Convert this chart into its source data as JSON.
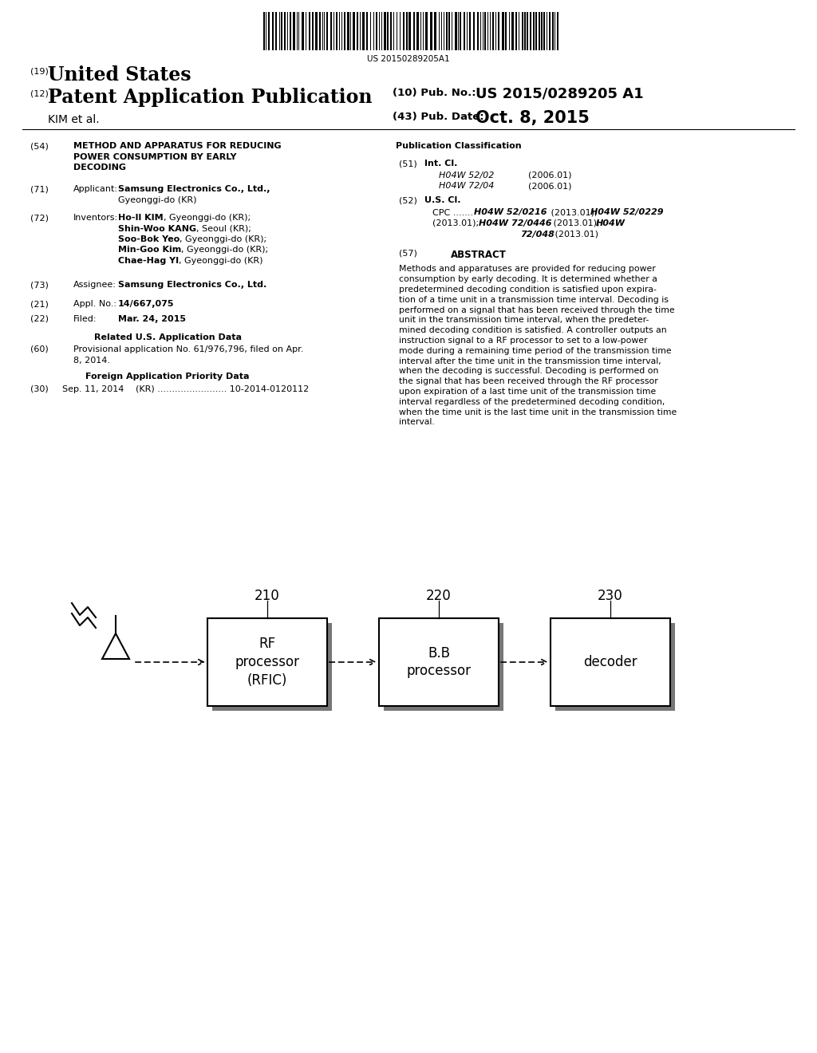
{
  "background_color": "#ffffff",
  "barcode_text": "US 20150289205A1",
  "title_text_line1": "METHOD AND APPARATUS FOR REDUCING",
  "title_text_line2": "POWER CONSUMPTION BY EARLY",
  "title_text_line3": "DECODING",
  "block1_label": "210",
  "block1_text": "RF\nprocessor\n(RFIC)",
  "block2_label": "220",
  "block2_text": "B.B\nprocessor",
  "block3_label": "230",
  "block3_text": "decoder"
}
